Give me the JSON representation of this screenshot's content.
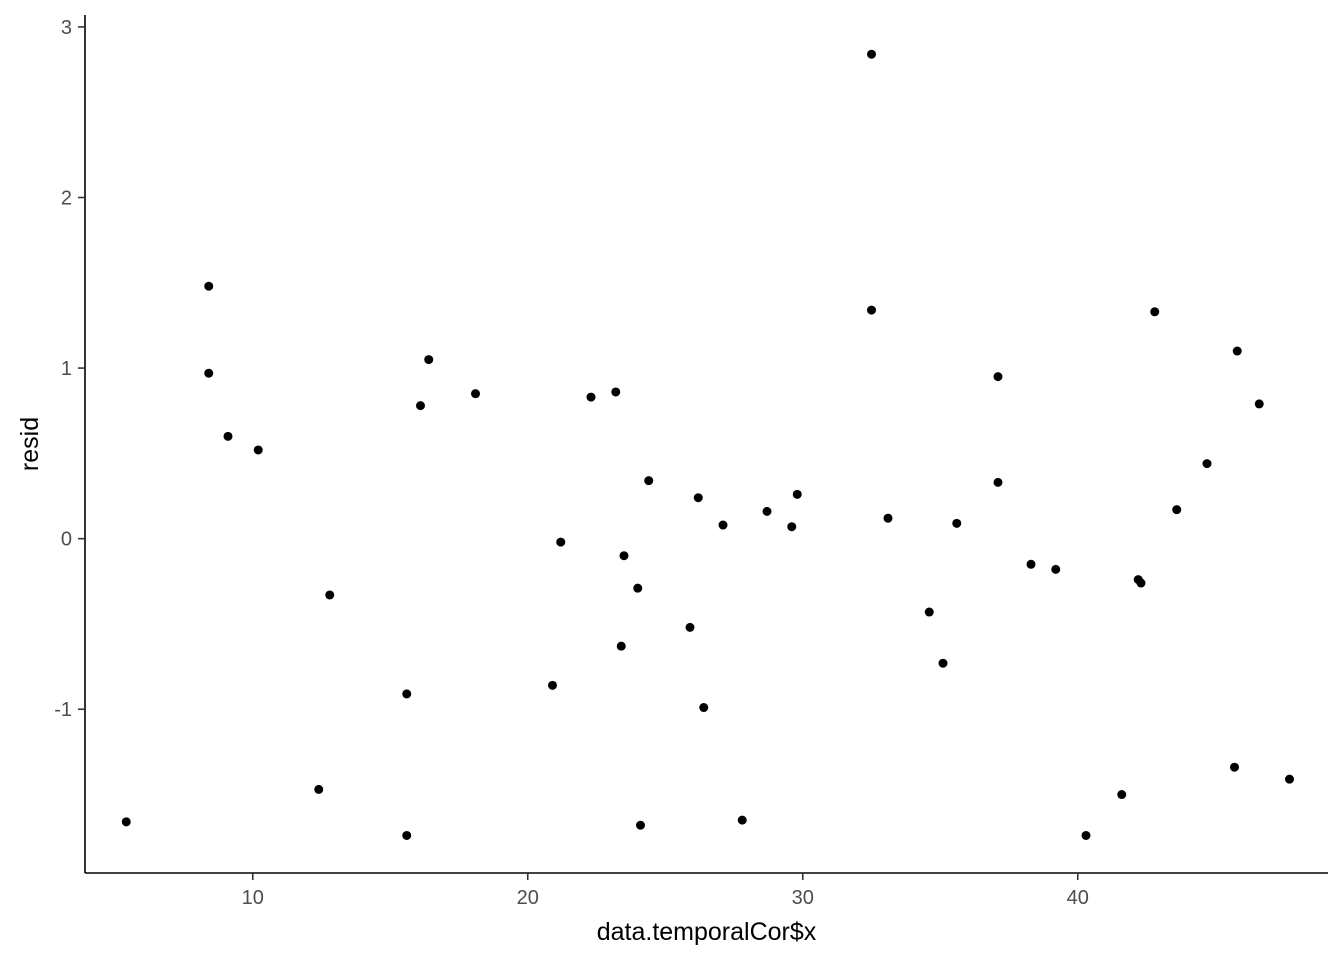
{
  "chart_data": {
    "type": "scatter",
    "title": "",
    "xlabel": "data.temporalCor$x",
    "ylabel": "resid",
    "xlim": [
      3.9,
      49.1
    ],
    "ylim": [
      -1.96,
      3.07
    ],
    "x_ticks": [
      10,
      20,
      30,
      40
    ],
    "y_ticks": [
      -1,
      0,
      1,
      2,
      3
    ],
    "x_tick_labels": [
      "10",
      "20",
      "30",
      "40"
    ],
    "y_tick_labels": [
      "-1",
      "0",
      "1",
      "2",
      "3"
    ],
    "grid": false,
    "legend": "none",
    "point_color": "#000000",
    "points": [
      {
        "x": 5.4,
        "y": -1.66
      },
      {
        "x": 8.4,
        "y": 1.48
      },
      {
        "x": 8.4,
        "y": 0.97
      },
      {
        "x": 9.1,
        "y": 0.6
      },
      {
        "x": 10.2,
        "y": 0.52
      },
      {
        "x": 12.4,
        "y": -1.47
      },
      {
        "x": 12.8,
        "y": -0.33
      },
      {
        "x": 15.6,
        "y": -0.91
      },
      {
        "x": 15.6,
        "y": -1.74
      },
      {
        "x": 16.1,
        "y": 0.78
      },
      {
        "x": 16.4,
        "y": 1.05
      },
      {
        "x": 18.1,
        "y": 0.85
      },
      {
        "x": 20.9,
        "y": -0.86
      },
      {
        "x": 21.2,
        "y": -0.02
      },
      {
        "x": 22.3,
        "y": 0.83
      },
      {
        "x": 23.2,
        "y": 0.86
      },
      {
        "x": 23.4,
        "y": -0.63
      },
      {
        "x": 23.5,
        "y": -0.1
      },
      {
        "x": 24.0,
        "y": -0.29
      },
      {
        "x": 24.1,
        "y": -1.68
      },
      {
        "x": 24.4,
        "y": 0.34
      },
      {
        "x": 25.9,
        "y": -0.52
      },
      {
        "x": 26.2,
        "y": 0.24
      },
      {
        "x": 26.4,
        "y": -0.99
      },
      {
        "x": 27.1,
        "y": 0.08
      },
      {
        "x": 27.8,
        "y": -1.65
      },
      {
        "x": 28.7,
        "y": 0.16
      },
      {
        "x": 29.6,
        "y": 0.07
      },
      {
        "x": 29.8,
        "y": 0.26
      },
      {
        "x": 32.5,
        "y": 2.84
      },
      {
        "x": 32.5,
        "y": 1.34
      },
      {
        "x": 33.1,
        "y": 0.12
      },
      {
        "x": 34.6,
        "y": -0.43
      },
      {
        "x": 35.1,
        "y": -0.73
      },
      {
        "x": 35.6,
        "y": 0.09
      },
      {
        "x": 37.1,
        "y": 0.95
      },
      {
        "x": 37.1,
        "y": 0.33
      },
      {
        "x": 38.3,
        "y": -0.15
      },
      {
        "x": 39.2,
        "y": -0.18
      },
      {
        "x": 40.3,
        "y": -1.74
      },
      {
        "x": 41.6,
        "y": -1.5
      },
      {
        "x": 42.2,
        "y": -0.24
      },
      {
        "x": 42.3,
        "y": -0.26
      },
      {
        "x": 42.8,
        "y": 1.33
      },
      {
        "x": 43.6,
        "y": 0.17
      },
      {
        "x": 44.7,
        "y": 0.44
      },
      {
        "x": 45.7,
        "y": -1.34
      },
      {
        "x": 45.8,
        "y": 1.1
      },
      {
        "x": 46.6,
        "y": 0.79
      },
      {
        "x": 47.7,
        "y": -1.41
      }
    ]
  }
}
